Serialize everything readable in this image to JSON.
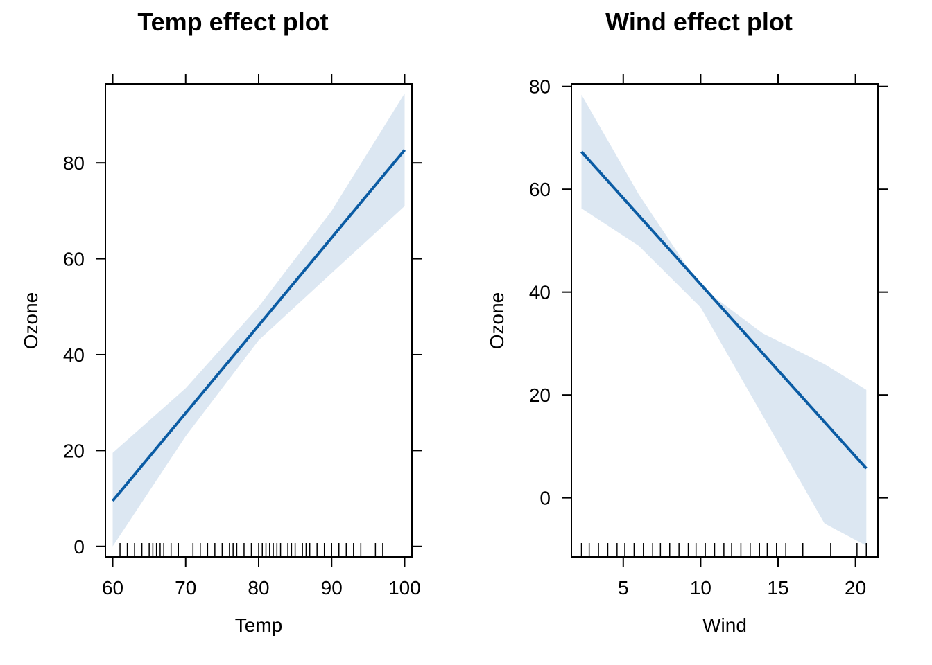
{
  "chart_data": [
    {
      "type": "line",
      "title": "Temp effect plot",
      "xlabel": "Temp",
      "ylabel": "Ozone",
      "xlim": [
        59,
        101
      ],
      "ylim": [
        -2.2,
        96.5
      ],
      "xticks": [
        60,
        70,
        80,
        90,
        100
      ],
      "yticks": [
        0,
        20,
        40,
        60,
        80
      ],
      "band_color": "#dce7f2",
      "line_color": "#0b5ca4",
      "series": [
        {
          "x": [
            60,
            100
          ],
          "y": [
            9.5,
            82.7
          ]
        }
      ],
      "band": {
        "x": [
          60,
          70,
          80,
          90,
          100
        ],
        "lower": [
          0,
          23,
          43,
          57,
          71
        ],
        "upper": [
          19.5,
          33,
          50,
          70,
          94.5
        ]
      },
      "rug": [
        61,
        62,
        63,
        64,
        65,
        65.5,
        66,
        66.5,
        67,
        68,
        69,
        71,
        72,
        73,
        74,
        75,
        76,
        76.5,
        77,
        78,
        79,
        80,
        80.5,
        81,
        81.5,
        82,
        82.5,
        83,
        84,
        84.5,
        85,
        86,
        86.5,
        87,
        88,
        89,
        90,
        91,
        92,
        93,
        94,
        96,
        97
      ]
    },
    {
      "type": "line",
      "title": "Wind effect plot",
      "xlabel": "Wind",
      "ylabel": "Ozone",
      "xlim": [
        1.65,
        21.45
      ],
      "ylim": [
        -11.5,
        80.5
      ],
      "xticks": [
        5,
        10,
        15,
        20
      ],
      "yticks": [
        0,
        20,
        40,
        60,
        80
      ],
      "band_color": "#dce7f2",
      "line_color": "#0b5ca4",
      "series": [
        {
          "x": [
            2.3,
            20.7
          ],
          "y": [
            67.3,
            5.7
          ]
        }
      ],
      "band": {
        "x": [
          2.3,
          6,
          10,
          14,
          18,
          20.7
        ],
        "lower": [
          56.3,
          49,
          37,
          16,
          -5,
          -9.3
        ],
        "upper": [
          78.4,
          59,
          41,
          32,
          26,
          21
        ]
      },
      "rug": [
        2.3,
        2.8,
        3.4,
        4.0,
        4.6,
        5.1,
        5.7,
        6.3,
        6.9,
        7.4,
        8.0,
        8.6,
        9.2,
        9.7,
        10.3,
        10.9,
        11.5,
        12.0,
        12.6,
        13.2,
        13.8,
        14.3,
        14.9,
        15.5,
        16.6,
        18.4,
        20.1,
        20.7
      ]
    }
  ]
}
